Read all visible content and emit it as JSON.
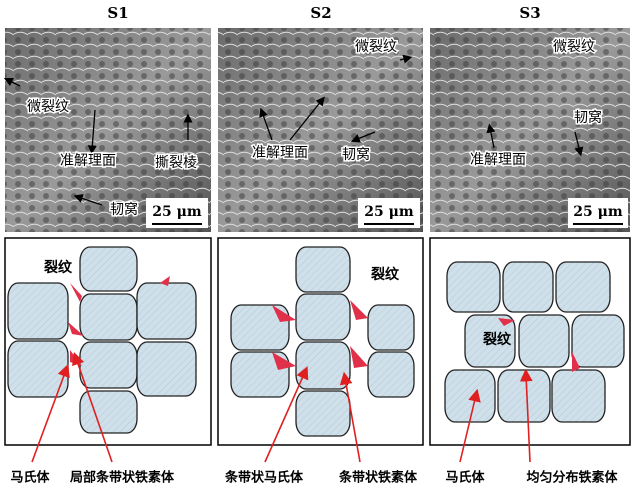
{
  "columns": [
    {
      "title": "S1",
      "sem_labels": [
        "微裂纹",
        "准解理面",
        "撕裂棱",
        "韧窝"
      ],
      "scale_bar": "25 μm",
      "schematic_label": "裂纹"
    },
    {
      "title": "S2",
      "sem_labels": [
        "微裂纹",
        "准解理面",
        "韧窝"
      ],
      "scale_bar": "25 μm",
      "schematic_label": "裂纹"
    },
    {
      "title": "S3",
      "sem_labels": [
        "微裂纹",
        "韧窝",
        "准解理面"
      ],
      "scale_bar": "25 μm",
      "schematic_label": "裂纹"
    }
  ],
  "bottom_labels": [
    "马氏体",
    "局部条带状铁素体",
    "条带状马氏体",
    "条带状铁素体",
    "马氏体",
    "均匀分布铁素体"
  ]
}
